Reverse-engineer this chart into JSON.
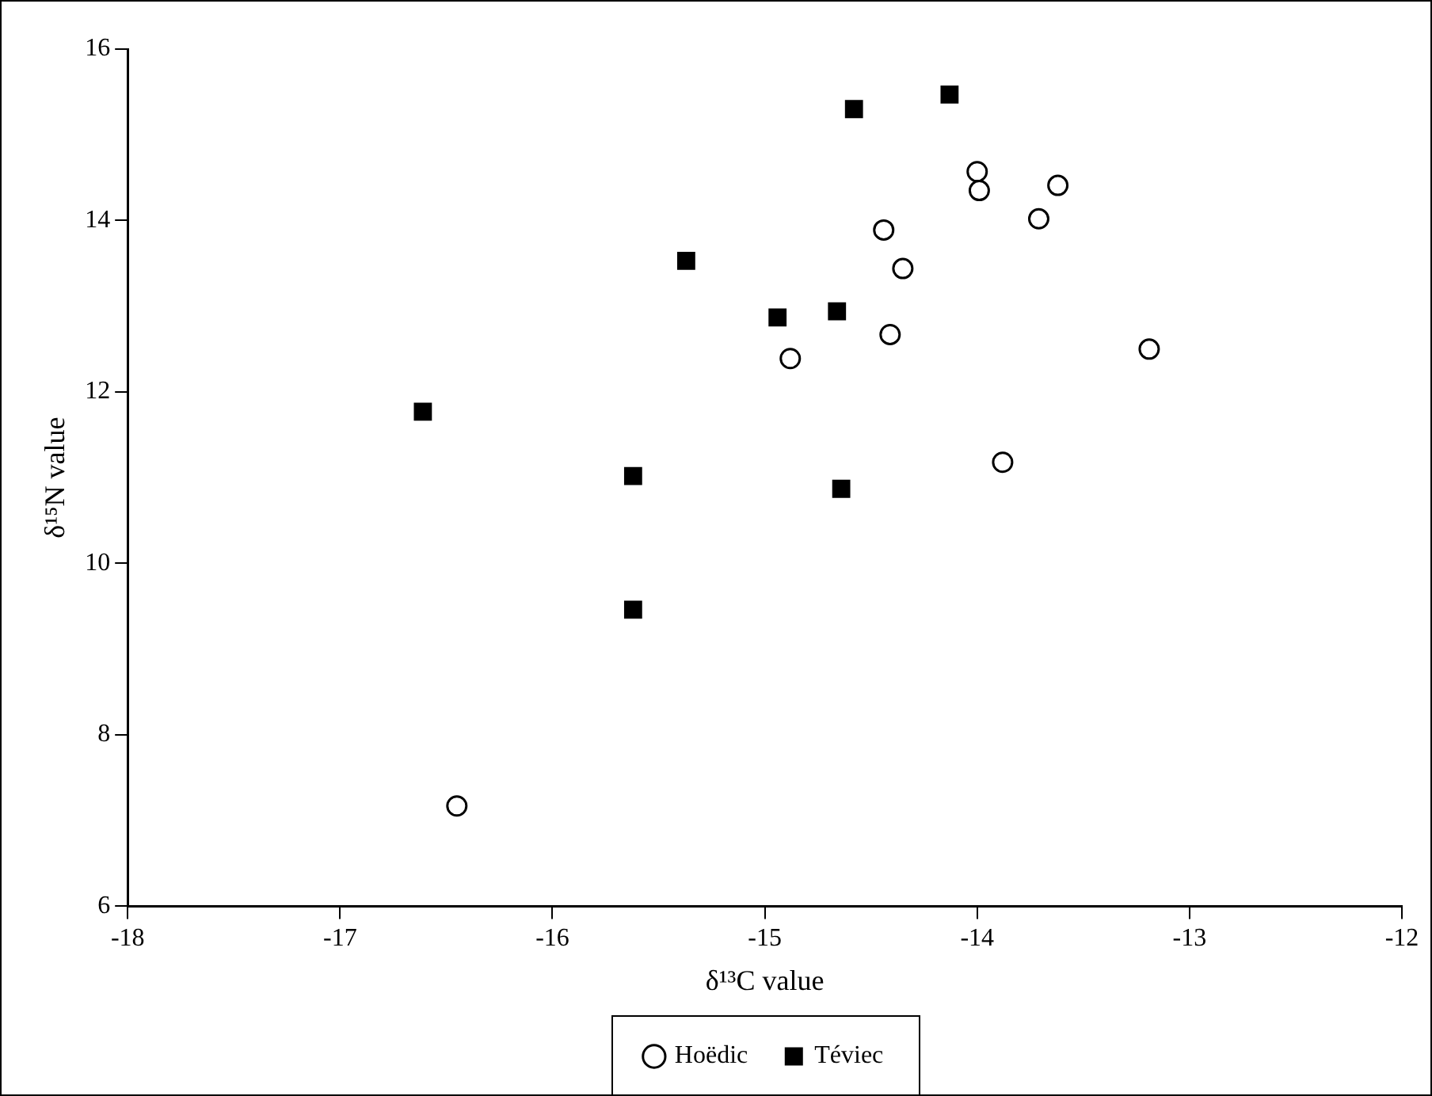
{
  "chart_data": {
    "type": "scatter",
    "xlabel": "δ¹³C value",
    "ylabel": "δ¹⁵N value",
    "xlim": [
      -18,
      -12
    ],
    "xticks": [
      -18,
      -17,
      -16,
      -15,
      -14,
      -13,
      -12
    ],
    "ylim": [
      6,
      16
    ],
    "yticks": [
      6,
      8,
      10,
      12,
      14,
      16
    ],
    "grid": false,
    "legend": "bottom",
    "series": [
      {
        "name": "Hoëdic",
        "color": "#000000",
        "marker": "circle",
        "x": [
          -14.44,
          -14.35,
          -14.41,
          -14.88,
          -14.0,
          -13.99,
          -13.62,
          -13.71,
          -13.88,
          -13.19,
          -16.45
        ],
        "values": [
          13.89,
          13.44,
          12.67,
          12.39,
          14.57,
          14.35,
          14.41,
          14.02,
          11.18,
          12.5,
          7.17
        ]
      },
      {
        "name": "Téviec",
        "color": "#000000",
        "marker": "square",
        "x": [
          -16.61,
          -15.62,
          -15.62,
          -15.37,
          -14.94,
          -14.66,
          -14.58,
          -14.13,
          -14.64
        ],
        "values": [
          11.77,
          11.02,
          9.46,
          13.53,
          12.87,
          12.94,
          15.3,
          15.47,
          10.87
        ]
      }
    ]
  }
}
